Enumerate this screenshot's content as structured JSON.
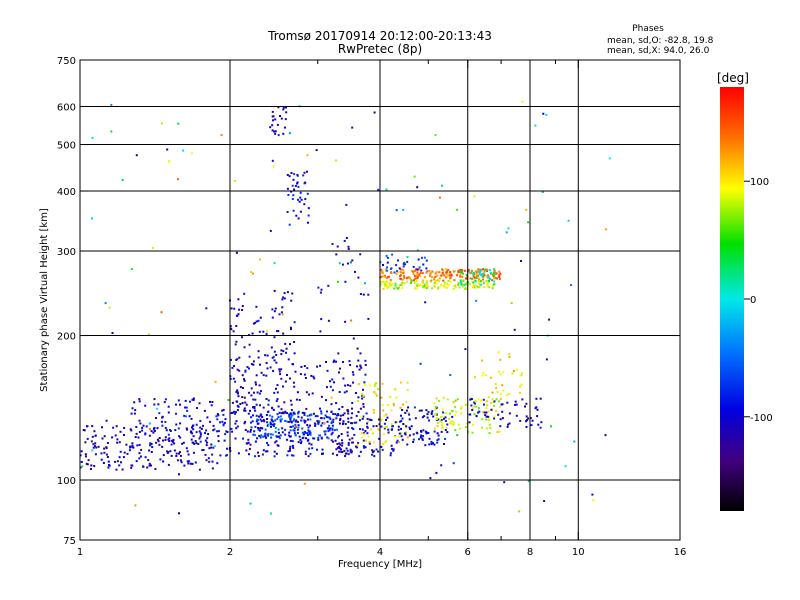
{
  "chart_data": {
    "type": "scatter",
    "title": "Tromsø 20170914 20:12:00-20:13:43",
    "subtitle": "RwPretec (8p)",
    "xlabel": "Frequency [MHz]",
    "ylabel": "Stationary phase Virtual Height [km]",
    "x_scale": "log",
    "y_scale": "log",
    "xlim": [
      1,
      16
    ],
    "ylim": [
      75,
      750
    ],
    "x_ticks": [
      1,
      2,
      4,
      6,
      8,
      10,
      16
    ],
    "x_minor_ticks": [
      3,
      5,
      7,
      9
    ],
    "y_ticks": [
      75,
      100,
      200,
      300,
      400,
      500,
      600,
      750
    ],
    "x_tick_labels": [
      "1",
      "2",
      "4",
      "6",
      "8",
      "10",
      "16"
    ],
    "y_tick_labels": [
      "75",
      "100",
      "200",
      "300",
      "400",
      "500",
      "600",
      "750"
    ],
    "grid": true,
    "stats": {
      "heading": "Phases",
      "line_o": "mean, sd,O: -82.8, 19.8",
      "line_x": "mean, sd,X:  94.0, 26.0"
    },
    "colorbar": {
      "label": "[deg]",
      "range": [
        -180,
        180
      ],
      "ticks": [
        100,
        0,
        -100
      ],
      "tick_labels": [
        "100",
        "0",
        "-100"
      ]
    },
    "clusters": [
      {
        "x": [
          1.0,
          1.9
        ],
        "y": [
          105,
          130
        ],
        "phase": -105,
        "n": 200
      },
      {
        "x": [
          1.25,
          1.9
        ],
        "y": [
          118,
          148
        ],
        "phase": -95,
        "n": 90
      },
      {
        "x": [
          1.9,
          3.6
        ],
        "y": [
          112,
          140
        ],
        "phase": -95,
        "n": 240
      },
      {
        "x": [
          2.2,
          3.3
        ],
        "y": [
          122,
          138
        ],
        "phase": -65,
        "n": 130
      },
      {
        "x": [
          2.0,
          3.8
        ],
        "y": [
          132,
          178
        ],
        "phase": -100,
        "n": 150
      },
      {
        "x": [
          3.3,
          4.3
        ],
        "y": [
          112,
          135
        ],
        "phase": -100,
        "n": 80
      },
      {
        "x": [
          3.6,
          4.6
        ],
        "y": [
          118,
          160
        ],
        "phase": 95,
        "n": 70
      },
      {
        "x": [
          4.3,
          5.6
        ],
        "y": [
          118,
          142
        ],
        "phase": -90,
        "n": 90
      },
      {
        "x": [
          5.1,
          7.0
        ],
        "y": [
          125,
          150
        ],
        "phase": 85,
        "n": 90
      },
      {
        "x": [
          6.0,
          8.5
        ],
        "y": [
          128,
          148
        ],
        "phase": -100,
        "n": 60
      },
      {
        "x": [
          6.2,
          7.8
        ],
        "y": [
          145,
          185
        ],
        "phase": 100,
        "n": 35
      },
      {
        "x": [
          4.0,
          7.0
        ],
        "y": [
          260,
          275
        ],
        "phase": 135,
        "n": 190
      },
      {
        "x": [
          4.0,
          6.8
        ],
        "y": [
          250,
          260
        ],
        "phase": 80,
        "n": 130
      },
      {
        "x": [
          5.8,
          6.8
        ],
        "y": [
          255,
          275
        ],
        "phase": 20,
        "n": 40
      },
      {
        "x": [
          4.0,
          5.0
        ],
        "y": [
          270,
          295
        ],
        "phase": -70,
        "n": 30
      },
      {
        "x": [
          2.0,
          2.3
        ],
        "y": [
          140,
          240
        ],
        "phase": -105,
        "n": 65
      },
      {
        "x": [
          2.3,
          2.7
        ],
        "y": [
          170,
          250
        ],
        "phase": -100,
        "n": 45
      },
      {
        "x": [
          2.6,
          2.9
        ],
        "y": [
          340,
          440
        ],
        "phase": -90,
        "n": 40
      },
      {
        "x": [
          2.4,
          2.6
        ],
        "y": [
          520,
          600
        ],
        "phase": -105,
        "n": 22
      },
      {
        "x": [
          3.0,
          3.8
        ],
        "y": [
          150,
          320
        ],
        "phase": -100,
        "n": 40
      },
      {
        "x": [
          1.0,
          12.0
        ],
        "y": [
          85,
          620
        ],
        "phase": 0,
        "n": 130
      }
    ]
  }
}
